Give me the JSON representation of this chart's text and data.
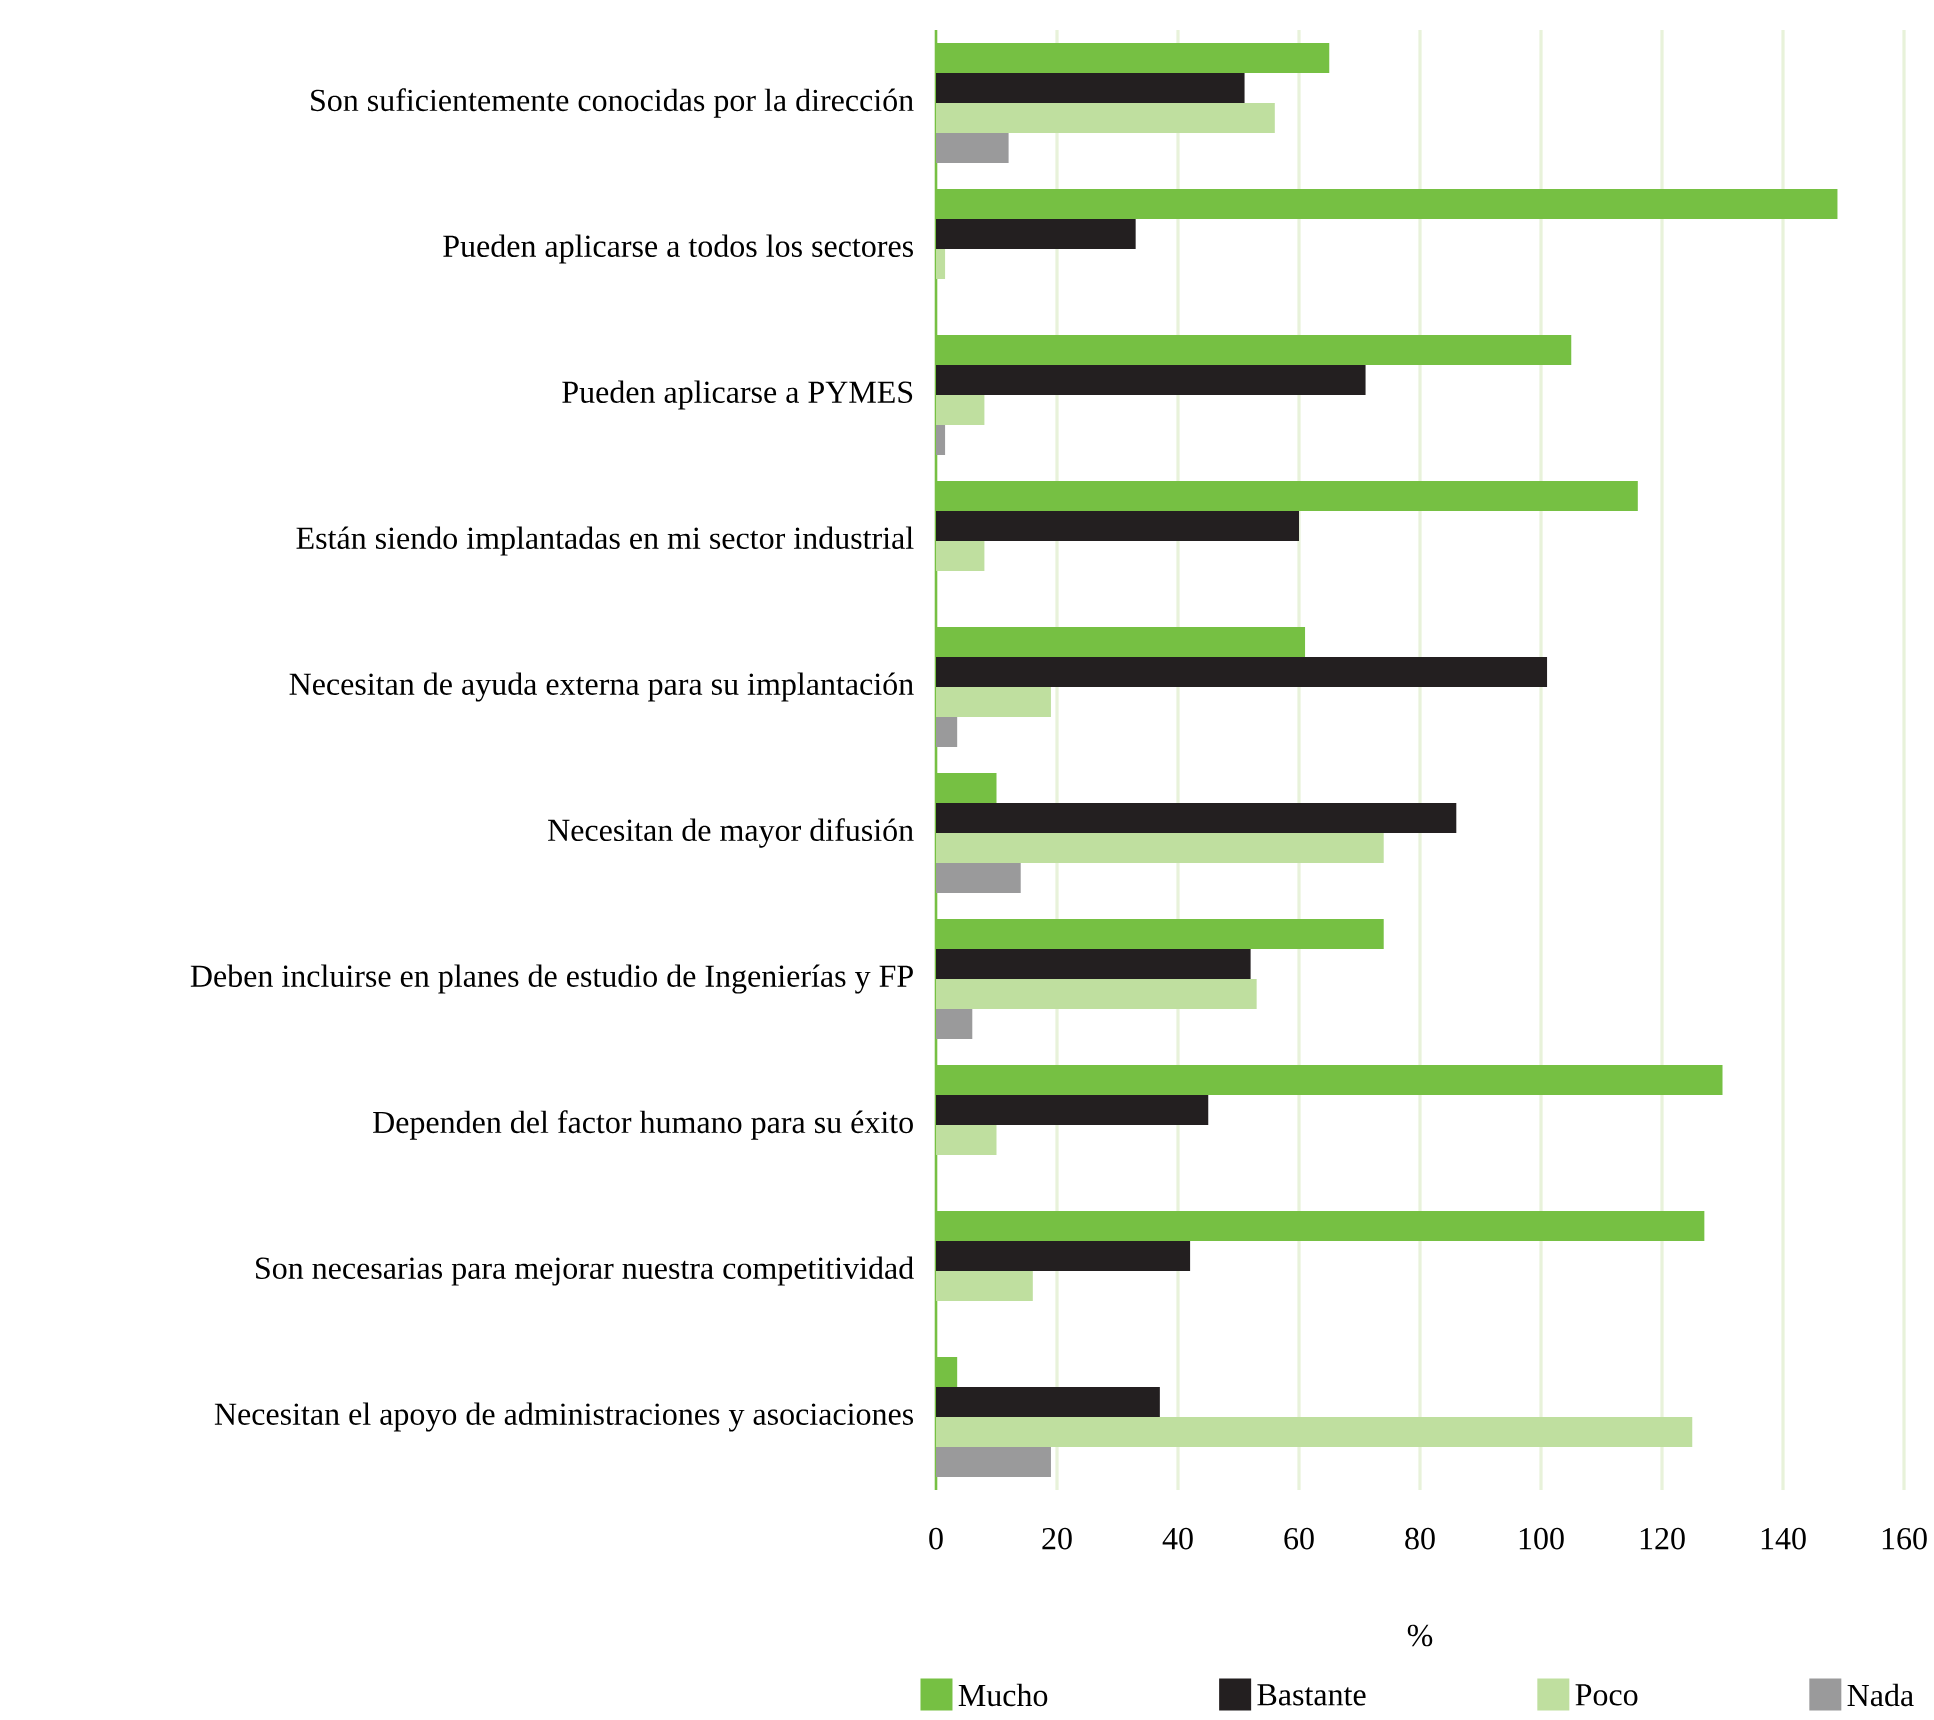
{
  "chart_data": {
    "type": "bar",
    "orientation": "horizontal",
    "xlabel": "%",
    "categories": [
      "Son suficientemente conocidas por la dirección",
      "Pueden aplicarse a todos los sectores",
      "Pueden aplicarse a PYMES",
      "Están siendo implantadas en mi sector industrial",
      "Necesitan de ayuda externa para su implantación",
      "Necesitan de mayor difusión",
      "Deben incluirse en planes de estudio de Ingenierías y FP",
      "Dependen del factor humano para su éxito",
      "Son necesarias para mejorar nuestra competitividad",
      "Necesitan el apoyo de administraciones y asociaciones"
    ],
    "series": [
      {
        "name": "Mucho",
        "color": "#76c043",
        "values": [
          65,
          149,
          105,
          116,
          61,
          10,
          74,
          130,
          127,
          3.5
        ]
      },
      {
        "name": "Bastante",
        "color": "#231f20",
        "values": [
          51,
          33,
          71,
          60,
          101,
          86,
          52,
          45,
          42,
          37
        ]
      },
      {
        "name": "Poco",
        "color": "#bfdf9f",
        "values": [
          56,
          1.5,
          8,
          8,
          19,
          74,
          53,
          10,
          16,
          125
        ]
      },
      {
        "name": "Nada",
        "color": "#9a9a9b",
        "values": [
          12,
          null,
          1.5,
          null,
          3.5,
          14,
          6,
          null,
          null,
          19
        ]
      }
    ],
    "xlim": [
      0,
      160
    ],
    "xticks": [
      0,
      20,
      40,
      60,
      80,
      100,
      120,
      140,
      160
    ],
    "grid": "x",
    "legend": "bottom"
  }
}
